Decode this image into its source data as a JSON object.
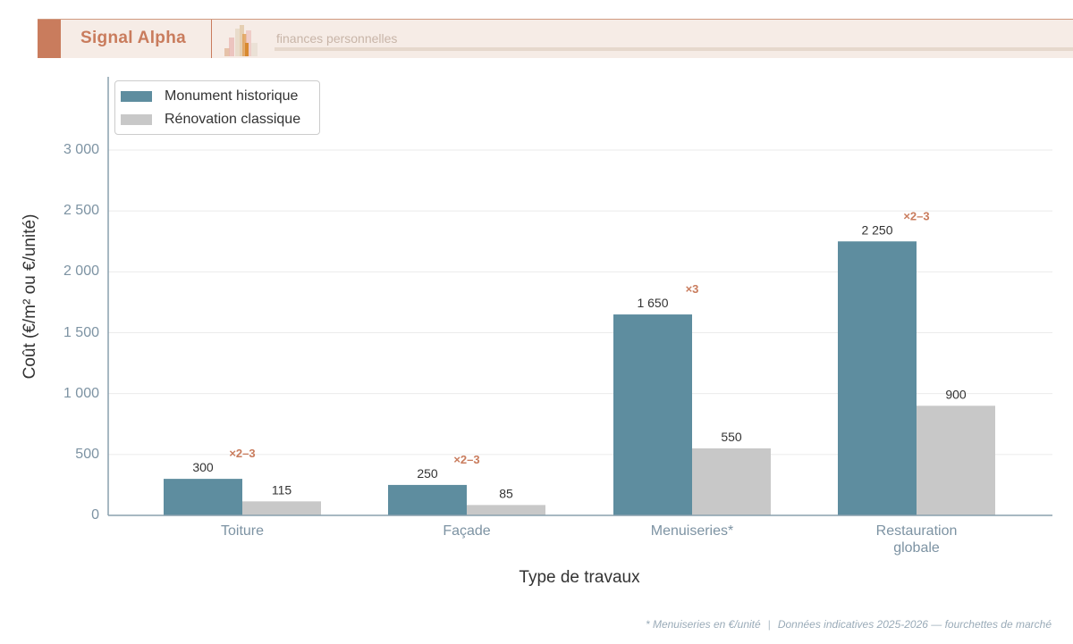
{
  "header": {
    "brand": "Signal Alpha",
    "tagline": "finances personnelles",
    "logo_icon": "bar-chart-logo-icon"
  },
  "colors": {
    "monument": "#5e8d9f",
    "classique": "#c8c8c8",
    "multiplier": "#c97c5d",
    "axis": "#8aa0ae",
    "brand": "#c97c5d"
  },
  "chart_data": {
    "type": "bar",
    "title": "",
    "xlabel": "Type de travaux",
    "ylabel": "Coût (€/m² ou €/unité)",
    "ylim": [
      0,
      3650
    ],
    "yticks": [
      0,
      500,
      1000,
      1500,
      2000,
      2500,
      3000
    ],
    "ytick_labels": [
      "0",
      "500",
      "1 000",
      "1 500",
      "2 000",
      "2 500",
      "3 000"
    ],
    "categories": [
      "Toiture",
      "Façade",
      "Menuiseries*",
      "Restauration globale"
    ],
    "series": [
      {
        "name": "Monument historique",
        "values": [
          300,
          250,
          1650,
          2250
        ],
        "labels": [
          "300",
          "250",
          "1 650",
          "2 250"
        ]
      },
      {
        "name": "Rénovation classique",
        "values": [
          115,
          85,
          550,
          900
        ],
        "labels": [
          "115",
          "85",
          "550",
          "900"
        ]
      }
    ],
    "annotations": [
      "×2–3",
      "×2–3",
      "×3",
      "×2–3"
    ],
    "grid": true,
    "legend_position": "upper left"
  },
  "footer": {
    "note": "* Menuiseries en €/unité",
    "separator": "|",
    "source": "Données indicatives 2025-2026 — fourchettes de marché"
  }
}
